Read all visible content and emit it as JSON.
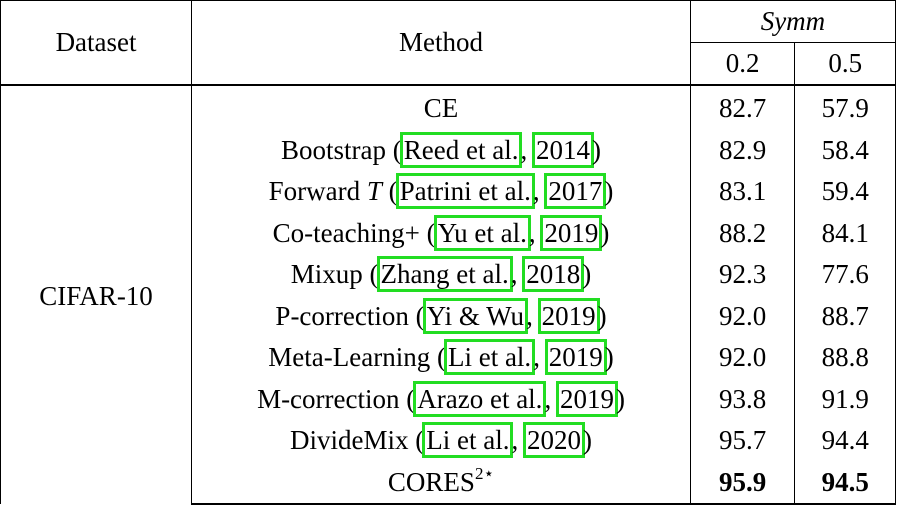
{
  "header": {
    "dataset": "Dataset",
    "method": "Method",
    "group": "Symm",
    "col_a": "0.2",
    "col_b": "0.5"
  },
  "dataset_name": "CIFAR-10",
  "rows": [
    {
      "method": "CE",
      "cite_author": "",
      "cite_year": "",
      "prefix": "",
      "a": "82.7",
      "b": "57.9"
    },
    {
      "method": "Bootstrap",
      "cite_author": "Reed et al.",
      "cite_year": "2014",
      "a": "82.9",
      "b": "58.4"
    },
    {
      "method": "Forward",
      "method_var": "T",
      "cite_author": "Patrini et al.",
      "cite_year": "2017",
      "a": "83.1",
      "b": "59.4"
    },
    {
      "method": "Co-teaching+",
      "cite_author": "Yu et al.",
      "cite_year": "2019",
      "a": "88.2",
      "b": "84.1"
    },
    {
      "method": "Mixup",
      "cite_author": "Zhang et al.",
      "cite_year": "2018",
      "a": "92.3",
      "b": "77.6"
    },
    {
      "method": "P-correction",
      "cite_author": "Yi & Wu",
      "cite_year": "2019",
      "a": "92.0",
      "b": "88.7"
    },
    {
      "method": "Meta-Learning",
      "cite_author": "Li et al.",
      "cite_year": "2019",
      "a": "92.0",
      "b": "88.8"
    },
    {
      "method": "M-correction",
      "cite_author": "Arazo et al.",
      "cite_year": "2019",
      "a": "93.8",
      "b": "91.9"
    },
    {
      "method": "DivideMix",
      "cite_author": "Li et al.",
      "cite_year": "2020",
      "a": "95.7",
      "b": "94.4"
    },
    {
      "method": "CORES",
      "method_sup": "2⋆",
      "cite_author": "",
      "cite_year": "",
      "a": "95.9",
      "b": "94.5"
    }
  ],
  "highlight_color": "#22dd22"
}
